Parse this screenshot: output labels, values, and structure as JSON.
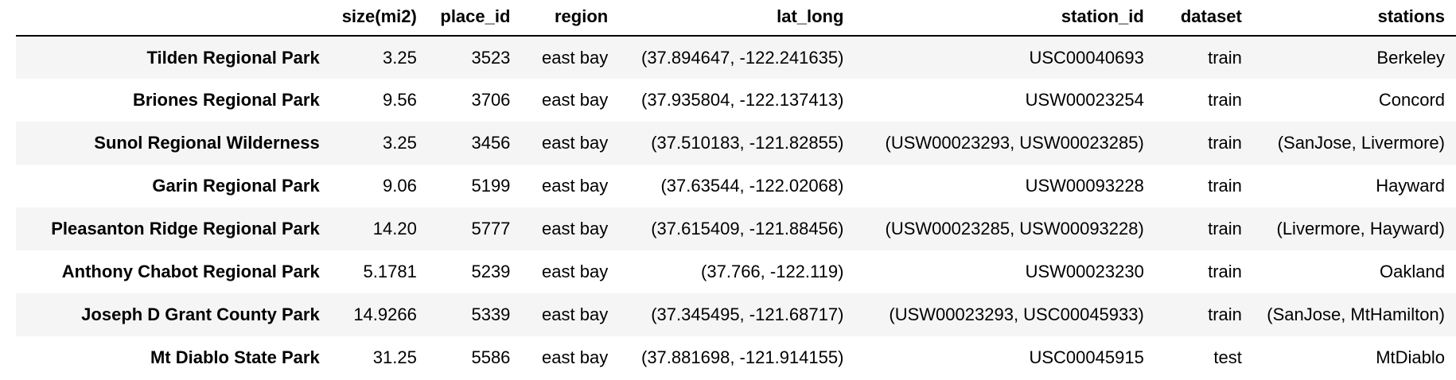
{
  "table": {
    "index_header": "",
    "columns": [
      "size(mi2)",
      "place_id",
      "region",
      "lat_long",
      "station_id",
      "dataset",
      "stations"
    ],
    "rows": [
      {
        "index": "Tilden Regional Park",
        "cells": [
          "3.25",
          "3523",
          "east bay",
          "(37.894647, -122.241635)",
          "USC00040693",
          "train",
          "Berkeley"
        ]
      },
      {
        "index": "Briones Regional Park",
        "cells": [
          "9.56",
          "3706",
          "east bay",
          "(37.935804, -122.137413)",
          "USW00023254",
          "train",
          "Concord"
        ]
      },
      {
        "index": "Sunol Regional Wilderness",
        "cells": [
          "3.25",
          "3456",
          "east bay",
          "(37.510183, -121.82855)",
          "(USW00023293, USW00023285)",
          "train",
          "(SanJose, Livermore)"
        ]
      },
      {
        "index": "Garin Regional Park",
        "cells": [
          "9.06",
          "5199",
          "east bay",
          "(37.63544, -122.02068)",
          "USW00093228",
          "train",
          "Hayward"
        ]
      },
      {
        "index": "Pleasanton Ridge Regional Park",
        "cells": [
          "14.20",
          "5777",
          "east bay",
          "(37.615409, -121.88456)",
          "(USW00023285, USW00093228)",
          "train",
          "(Livermore, Hayward)"
        ]
      },
      {
        "index": "Anthony Chabot Regional Park",
        "cells": [
          "5.1781",
          "5239",
          "east bay",
          "(37.766, -122.119)",
          "USW00023230",
          "train",
          "Oakland"
        ]
      },
      {
        "index": "Joseph D Grant County Park",
        "cells": [
          "14.9266",
          "5339",
          "east bay",
          "(37.345495, -121.68717)",
          "(USW00023293, USC00045933)",
          "train",
          "(SanJose, MtHamilton)"
        ]
      },
      {
        "index": "Mt Diablo State Park",
        "cells": [
          "31.25",
          "5586",
          "east bay",
          "(37.881698, -121.914155)",
          "USC00045915",
          "test",
          "MtDiablo"
        ]
      }
    ]
  }
}
